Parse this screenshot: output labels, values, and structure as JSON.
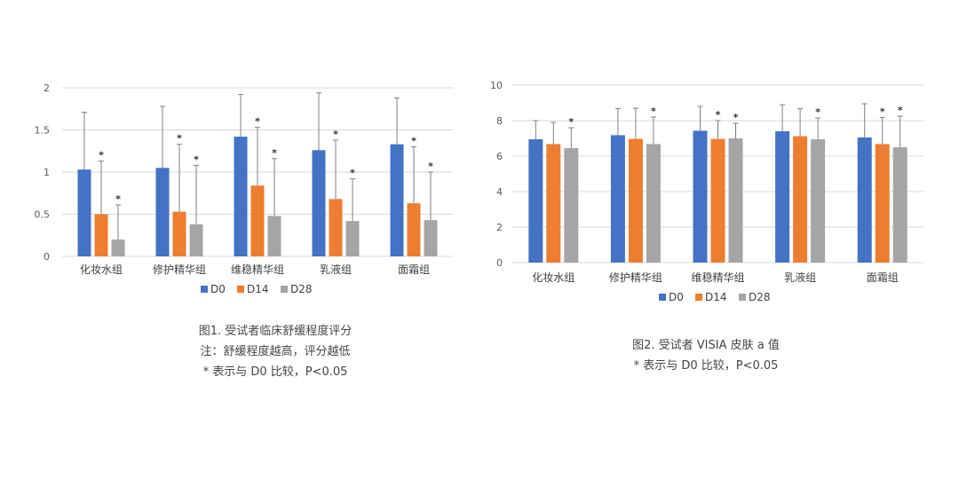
{
  "colors": {
    "D0": "#4472C4",
    "D14": "#ED7D31",
    "D28": "#A5A5A5",
    "grid": "#D9D9D9",
    "errbar": "#7F7F7F"
  },
  "chart_data": [
    {
      "type": "bar",
      "categories": [
        "化妆水组",
        "修护精华组",
        "维稳精华组",
        "乳液组",
        "面霜组"
      ],
      "ylim": [
        0,
        2
      ],
      "yticks": [
        "0",
        "0.5",
        "1",
        "1.5",
        "2"
      ],
      "ytick_values": [
        0,
        0.5,
        1,
        1.5,
        2
      ],
      "series": [
        {
          "name": "D0",
          "values": [
            1.03,
            1.05,
            1.42,
            1.26,
            1.33
          ],
          "err": [
            0.68,
            0.73,
            0.5,
            0.68,
            0.55
          ],
          "stars": [
            false,
            false,
            false,
            false,
            false
          ]
        },
        {
          "name": "D14",
          "values": [
            0.5,
            0.53,
            0.84,
            0.68,
            0.63
          ],
          "err": [
            0.63,
            0.8,
            0.69,
            0.7,
            0.67
          ],
          "stars": [
            true,
            true,
            true,
            true,
            true
          ]
        },
        {
          "name": "D28",
          "values": [
            0.2,
            0.38,
            0.48,
            0.42,
            0.43
          ],
          "err": [
            0.41,
            0.7,
            0.68,
            0.5,
            0.57
          ],
          "stars": [
            true,
            true,
            true,
            true,
            true
          ]
        }
      ],
      "caption": [
        "图1. 受试者临床舒缓程度评分",
        "注：舒缓程度越高，评分越低",
        "* 表示与 D0 比较，P<0.05"
      ]
    },
    {
      "type": "bar",
      "categories": [
        "化妆水组",
        "修护精华组",
        "维稳精华组",
        "乳液组",
        "面霜组"
      ],
      "ylim": [
        0,
        10
      ],
      "yticks": [
        "0",
        "2",
        "4",
        "6",
        "8",
        "10"
      ],
      "ytick_values": [
        0,
        2,
        4,
        6,
        8,
        10
      ],
      "series": [
        {
          "name": "D0",
          "values": [
            6.95,
            7.18,
            7.43,
            7.4,
            7.05
          ],
          "err": [
            1.05,
            1.5,
            1.37,
            1.5,
            1.9
          ],
          "stars": [
            false,
            false,
            false,
            false,
            false
          ]
        },
        {
          "name": "D14",
          "values": [
            6.68,
            6.97,
            6.97,
            7.12,
            6.68
          ],
          "err": [
            1.22,
            1.73,
            1.03,
            1.55,
            1.5
          ],
          "stars": [
            false,
            false,
            true,
            false,
            true
          ]
        },
        {
          "name": "D28",
          "values": [
            6.45,
            6.68,
            7.0,
            6.95,
            6.5
          ],
          "err": [
            1.15,
            1.52,
            0.85,
            1.2,
            1.75
          ],
          "stars": [
            true,
            true,
            true,
            true,
            true
          ]
        }
      ],
      "caption": [
        "图2. 受试者 VISIA 皮肤 a 值",
        "* 表示与 D0 比较，P<0.05"
      ]
    }
  ],
  "star_symbol": "*"
}
